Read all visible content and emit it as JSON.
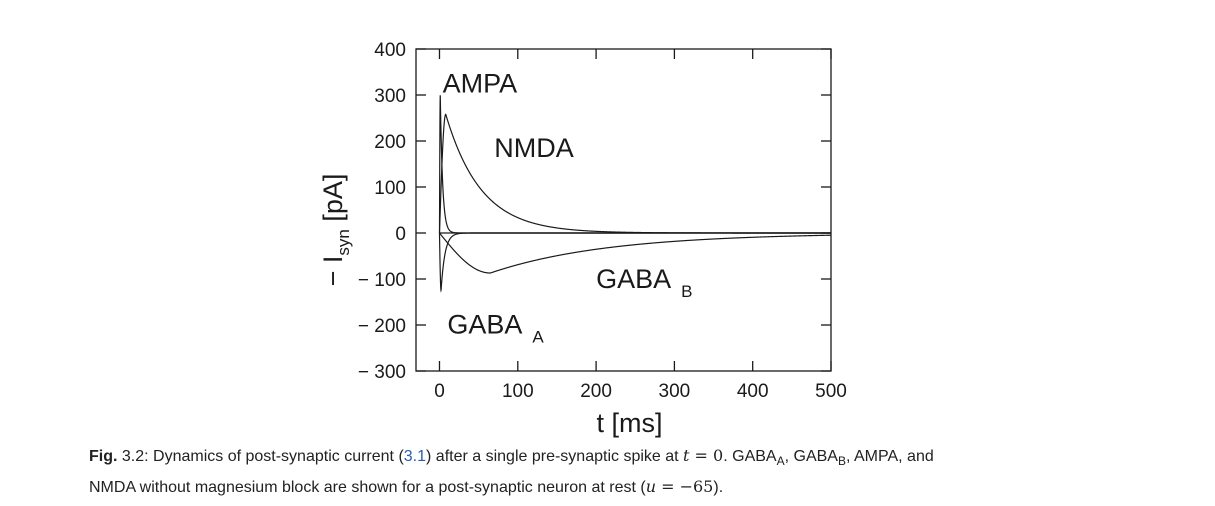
{
  "chart_data": {
    "type": "line",
    "xlabel": "t [ms]",
    "ylabel_main": "− I",
    "ylabel_sub": "syn",
    "ylabel_unit": " [pA]",
    "xlim": [
      -30,
      500
    ],
    "ylim": [
      -300,
      400
    ],
    "xticks": [
      0,
      100,
      200,
      300,
      400,
      500
    ],
    "yticks": [
      400,
      300,
      200,
      100,
      0,
      -100,
      -200,
      -300
    ],
    "ytick_labels": [
      "400",
      "300",
      "200",
      "100",
      "0",
      "− 100",
      "− 200",
      "− 300"
    ],
    "grid": false,
    "series": [
      {
        "name": "AMPA",
        "name_sub": "",
        "peak_t": 1,
        "peak_value": 300,
        "decay_tau_ms": 3
      },
      {
        "name": "NMDA",
        "name_sub": "",
        "peak_t": 8,
        "peak_value": 258,
        "decay_tau_ms": 45
      },
      {
        "name": "GABA",
        "name_sub": "A",
        "peak_t": 2,
        "peak_value": -125,
        "decay_tau_ms": 5
      },
      {
        "name": "GABA",
        "name_sub": "B",
        "peak_t": 65,
        "peak_value": -87,
        "decay_tau_ms": 150
      }
    ]
  },
  "caption": {
    "fig_label": "Fig.",
    "fig_number": " 3.2: Dynamics of post-synaptic current (",
    "ref": "3.1",
    "after_ref": ") after a single pre-synaptic spike at ",
    "t_var": "t",
    "eq_zero": " = 0",
    "after_t": ". GABA",
    "sub_a": "A",
    "comma1": ", GABA",
    "sub_b": "B",
    "rest_line1": ", AMPA, and",
    "line2_start": "NMDA without magnesium block are shown for a post-synaptic neuron at rest (",
    "u_var": "u",
    "eq_val": " = −65",
    "line2_end": ")."
  }
}
